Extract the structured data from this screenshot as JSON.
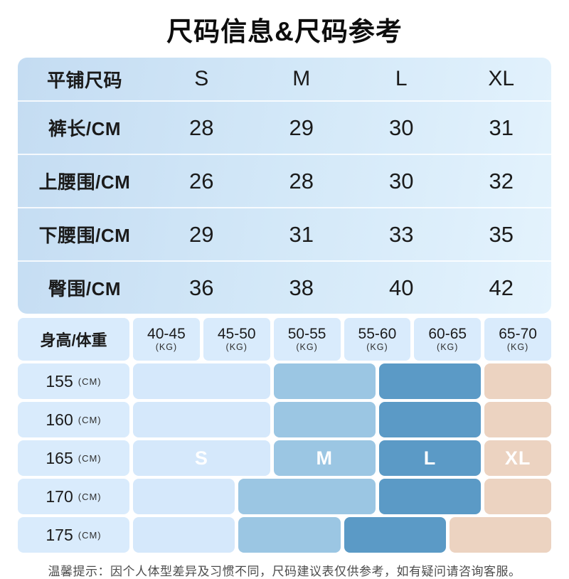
{
  "title": "尺码信息&尺码参考",
  "size_table": {
    "header": [
      "平铺尺码",
      "S",
      "M",
      "L",
      "XL"
    ],
    "rows": [
      {
        "label": "裤长/CM",
        "values": [
          "28",
          "29",
          "30",
          "31"
        ]
      },
      {
        "label": "上腰围/CM",
        "values": [
          "26",
          "28",
          "30",
          "32"
        ]
      },
      {
        "label": "下腰围/CM",
        "values": [
          "29",
          "31",
          "33",
          "35"
        ]
      },
      {
        "label": "臀围/CM",
        "values": [
          "36",
          "38",
          "40",
          "42"
        ]
      }
    ]
  },
  "matrix": {
    "corner_label": "身高/体重",
    "weight_columns": [
      {
        "range": "40-45",
        "unit": "(KG)"
      },
      {
        "range": "45-50",
        "unit": "(KG)"
      },
      {
        "range": "50-55",
        "unit": "(KG)"
      },
      {
        "range": "55-60",
        "unit": "(KG)"
      },
      {
        "range": "60-65",
        "unit": "(KG)"
      },
      {
        "range": "65-70",
        "unit": "(KG)"
      }
    ],
    "height_rows": [
      {
        "height": "155",
        "unit": "(CM)",
        "blocks": [
          {
            "size": "S",
            "start": 1,
            "span": 4,
            "label": ""
          },
          {
            "size": "M",
            "start": 5,
            "span": 3,
            "label": ""
          },
          {
            "size": "L",
            "start": 8,
            "span": 3,
            "label": ""
          },
          {
            "size": "XL",
            "start": 11,
            "span": 2,
            "label": ""
          }
        ]
      },
      {
        "height": "160",
        "unit": "(CM)",
        "blocks": [
          {
            "size": "S",
            "start": 1,
            "span": 4,
            "label": ""
          },
          {
            "size": "M",
            "start": 5,
            "span": 3,
            "label": ""
          },
          {
            "size": "L",
            "start": 8,
            "span": 3,
            "label": ""
          },
          {
            "size": "XL",
            "start": 11,
            "span": 2,
            "label": ""
          }
        ]
      },
      {
        "height": "165",
        "unit": "(CM)",
        "blocks": [
          {
            "size": "S",
            "start": 1,
            "span": 4,
            "label": "S"
          },
          {
            "size": "M",
            "start": 5,
            "span": 3,
            "label": "M"
          },
          {
            "size": "L",
            "start": 8,
            "span": 3,
            "label": "L"
          },
          {
            "size": "XL",
            "start": 11,
            "span": 2,
            "label": "XL"
          }
        ]
      },
      {
        "height": "170",
        "unit": "(CM)",
        "blocks": [
          {
            "size": "S",
            "start": 1,
            "span": 3,
            "label": ""
          },
          {
            "size": "M",
            "start": 4,
            "span": 4,
            "label": ""
          },
          {
            "size": "L",
            "start": 8,
            "span": 3,
            "label": ""
          },
          {
            "size": "XL",
            "start": 11,
            "span": 2,
            "label": ""
          }
        ]
      },
      {
        "height": "175",
        "unit": "(CM)",
        "blocks": [
          {
            "size": "S",
            "start": 1,
            "span": 3,
            "label": ""
          },
          {
            "size": "M",
            "start": 4,
            "span": 3,
            "label": ""
          },
          {
            "size": "L",
            "start": 7,
            "span": 3,
            "label": ""
          },
          {
            "size": "XL",
            "start": 10,
            "span": 3,
            "label": ""
          }
        ]
      }
    ]
  },
  "colors": {
    "cell_bg": "#d9ebfc",
    "size_s": "#d5e8fb",
    "size_m": "#9bc6e3",
    "size_l": "#5b9ac6",
    "size_xl": "#ecd3c1",
    "table_gradient_start": "#c4dcf2",
    "table_gradient_mid": "#d3e8f8",
    "table_gradient_end": "#e4f3fd"
  },
  "note": "温馨提示：因个人体型差异及习惯不同，尺码建议表仅供参考，如有疑问请咨询客服。"
}
